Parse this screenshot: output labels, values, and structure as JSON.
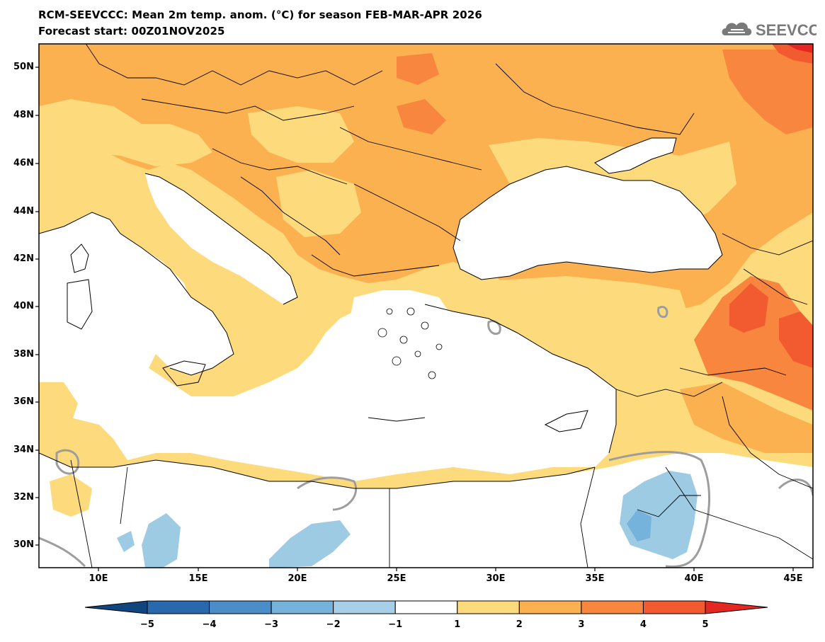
{
  "title": {
    "line1": "RCM-SEEVCCC: Mean 2m temp. anom. (°C) for season FEB-MAR-APR 2026",
    "line2": "Forecast start: 00Z01NOV2025"
  },
  "logo": {
    "text": "SEEVCCC",
    "icon": "cloud-icon"
  },
  "map": {
    "variable": "Mean 2m temperature anomaly",
    "units": "°C",
    "lon_range": [
      7,
      46
    ],
    "lat_range": [
      29,
      51
    ],
    "lat_ticks": [
      "50N",
      "48N",
      "46N",
      "44N",
      "42N",
      "40N",
      "38N",
      "36N",
      "34N",
      "32N",
      "30N"
    ],
    "lon_ticks": [
      "10E",
      "15E",
      "20E",
      "25E",
      "30E",
      "35E",
      "40E",
      "45E"
    ],
    "colors": {
      "land_white": "#ffffff",
      "anom_1_2": "#fddb7c",
      "anom_2_3": "#fbb150",
      "anom_3_4": "#f8863e",
      "anom_4_5": "#f25a30",
      "anom_5plus": "#e42720",
      "anom_m1_m2": "#9dcbe3",
      "anom_m2_m3": "#76b3dc",
      "zero_contour": "#9d9d9d"
    }
  },
  "colorbar": {
    "labels": [
      "-5",
      "-4",
      "-3",
      "-2",
      "-1",
      "1",
      "2",
      "3",
      "4",
      "5"
    ],
    "colors": [
      "#10457e",
      "#2868ac",
      "#4b8dc8",
      "#76b3dc",
      "#a7d0e8",
      "#ffffff",
      "#fddb7c",
      "#fbb150",
      "#f8863e",
      "#f25a30",
      "#e42720"
    ]
  }
}
